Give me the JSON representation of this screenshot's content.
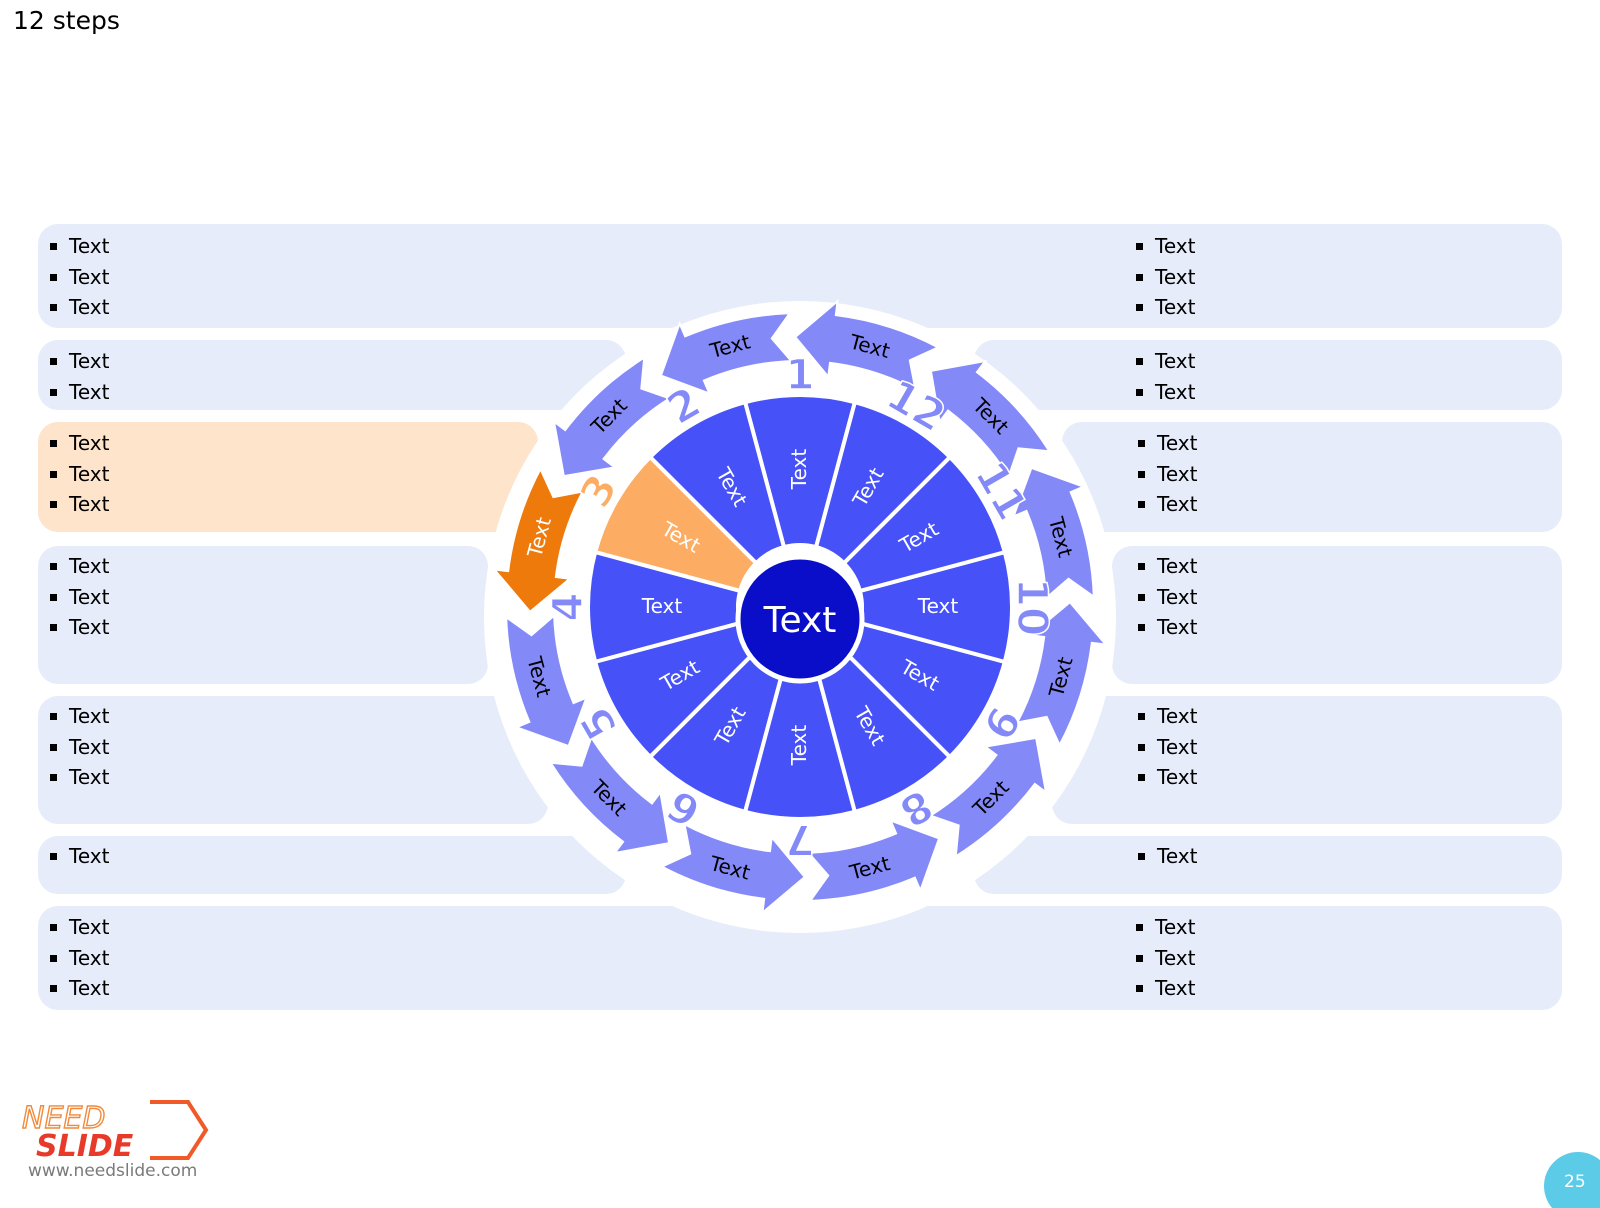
{
  "slide": {
    "title": "12 steps",
    "page_number": "25"
  },
  "center": {
    "label": "Text"
  },
  "sectors": [
    {
      "number": "1",
      "label": "Text"
    },
    {
      "number": "2",
      "label": "Text"
    },
    {
      "number": "3",
      "label": "Text"
    },
    {
      "number": "4",
      "label": "Text"
    },
    {
      "number": "5",
      "label": "Text"
    },
    {
      "number": "6",
      "label": "Text"
    },
    {
      "number": "7",
      "label": "Text"
    },
    {
      "number": "8",
      "label": "Text"
    },
    {
      "number": "9",
      "label": "Text"
    },
    {
      "number": "10",
      "label": "Text"
    },
    {
      "number": "11",
      "label": "Text"
    },
    {
      "number": "12",
      "label": "Text"
    }
  ],
  "arrows": [
    "Text",
    "Text",
    "Text",
    "Text",
    "Text",
    "Text",
    "Text",
    "Text",
    "Text",
    "Text",
    "Text",
    "Text"
  ],
  "highlight_step": 3,
  "left_boxes": [
    {
      "items": [
        "Text",
        "Text",
        "Text"
      ]
    },
    {
      "items": [
        "Text",
        "Text"
      ]
    },
    {
      "items": [
        "Text",
        "Text",
        "Text"
      ]
    },
    {
      "items": [
        "Text",
        "Text",
        "Text"
      ]
    },
    {
      "items": [
        "Text",
        "Text",
        "Text"
      ]
    },
    {
      "items": [
        "Text"
      ]
    },
    {
      "items": [
        "Text",
        "Text",
        "Text"
      ]
    }
  ],
  "right_boxes": [
    {
      "items": [
        "Text",
        "Text",
        "Text"
      ]
    },
    {
      "items": [
        "Text",
        "Text"
      ]
    },
    {
      "items": [
        "Text",
        "Text",
        "Text"
      ]
    },
    {
      "items": [
        "Text",
        "Text",
        "Text"
      ]
    },
    {
      "items": [
        "Text",
        "Text",
        "Text"
      ]
    },
    {
      "items": [
        "Text"
      ]
    },
    {
      "items": [
        "Text",
        "Text",
        "Text"
      ]
    }
  ],
  "footer": {
    "url": "www.needslide.com",
    "logo_text_top": "NEED",
    "logo_text_bottom": "SLIDE"
  },
  "colors": {
    "panel": "#e6ecfa",
    "panel_highlight": "#fee4cb",
    "sector": "#4652f8",
    "sector_highlight": "#fdad63",
    "center": "#0a0ec8",
    "arrow": "#8489f8",
    "arrow_highlight": "#ef7a0c",
    "number": "#8489f8",
    "number_highlight": "#fdad63"
  }
}
